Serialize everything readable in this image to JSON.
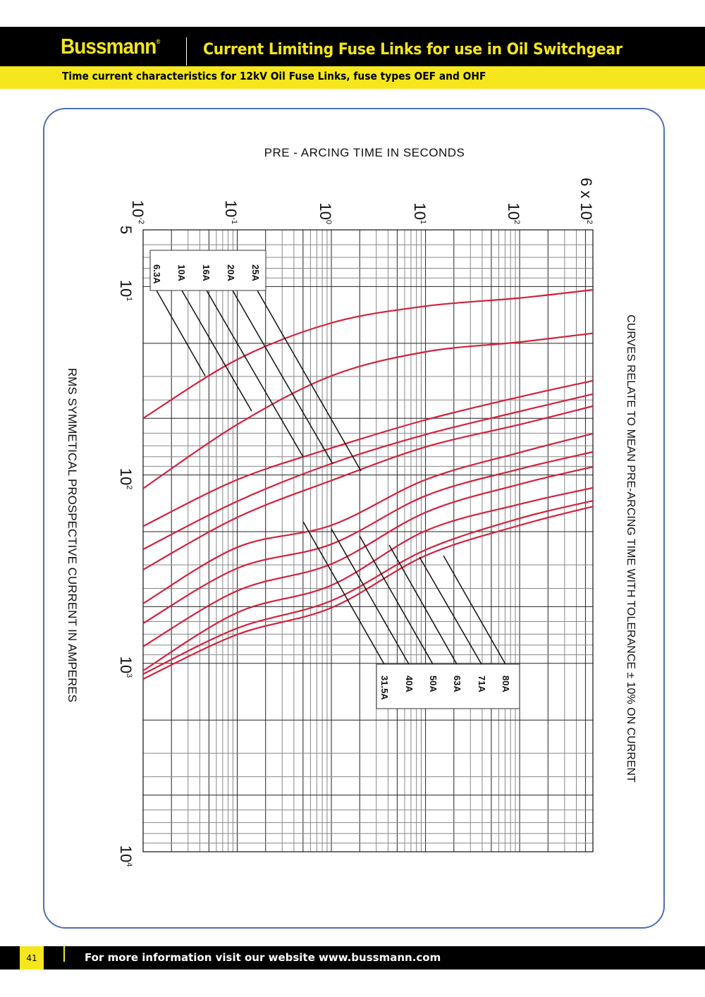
{
  "header": {
    "brand": "Bussmann",
    "registered": "®",
    "title": "Current Limiting Fuse Links for use in Oil Switchgear",
    "subtitle": "Time current characteristics for 12kV Oil Fuse Links, fuse types OEF and OHF"
  },
  "footer": {
    "page": "41",
    "text": "For more information visit our website www.bussmann.com"
  },
  "colors": {
    "brand_yellow": "#f6e61d",
    "header_black": "#000000",
    "frame_blue": "#4d6fb8",
    "curve_red": "#d4213d"
  },
  "chart_data": {
    "type": "line",
    "title": "PRE - ARCING TIME IN SECONDS",
    "xlabel": "PRE - ARCING TIME IN SECONDS",
    "ylabel": "RMS SYMMETICAL PROSPECTIVE CURRENT IN AMPERES",
    "note": "CURVES RELATE TO MEAN PRE-ARCING TIME WITH TOLERANCE ± 10% ON CURRENT",
    "x_scale": "log",
    "y_scale": "log",
    "xlim": [
      0.01,
      600
    ],
    "ylim": [
      5,
      10000
    ],
    "y_inverted": true,
    "grid": true,
    "x_ticks": [
      {
        "value": 0.01,
        "base": "10",
        "exp": "-2"
      },
      {
        "value": 0.1,
        "base": "10",
        "exp": "-1"
      },
      {
        "value": 1,
        "base": "10",
        "exp": "0"
      },
      {
        "value": 10,
        "base": "10",
        "exp": "1"
      },
      {
        "value": 100,
        "base": "10",
        "exp": "2"
      },
      {
        "value": 600,
        "base": "6 x 10",
        "exp": "2"
      }
    ],
    "y_ticks": [
      {
        "value": 5,
        "base": "5",
        "exp": ""
      },
      {
        "value": 10,
        "base": "10",
        "exp": "1"
      },
      {
        "value": 100,
        "base": "10",
        "exp": "2"
      },
      {
        "value": 1000,
        "base": "10",
        "exp": "3"
      },
      {
        "value": 10000,
        "base": "10",
        "exp": "4"
      }
    ],
    "x": [
      0.01,
      0.1,
      1,
      10,
      100,
      600
    ],
    "series": [
      {
        "name": "6.3A",
        "values": [
          50,
          24.4,
          15.6,
          12.7,
          11.5,
          10.4
        ]
      },
      {
        "name": "10A",
        "values": [
          118,
          54,
          29.8,
          22.2,
          19.7,
          17.7
        ]
      },
      {
        "name": "16A",
        "values": [
          187,
          106,
          72,
          51,
          38.5,
          31.6
        ]
      },
      {
        "name": "20A",
        "values": [
          248,
          138,
          87,
          61,
          46,
          37.2
        ]
      },
      {
        "name": "25A",
        "values": [
          318,
          168,
          107,
          71,
          54,
          43.1
        ]
      },
      {
        "name": "31.5A",
        "values": [
          481,
          242,
          185,
          106,
          76,
          60.3
        ]
      },
      {
        "name": "40A",
        "values": [
          613,
          313,
          233,
          129,
          93,
          75.5
        ]
      },
      {
        "name": "50A",
        "values": [
          814,
          412,
          297,
          158,
          112,
          90.5
        ]
      },
      {
        "name": "63A",
        "values": [
          1092,
          538,
          385,
          198,
          143,
          117
        ]
      },
      {
        "name": "71A",
        "values": [
          1140,
          651,
          465,
          250,
          170,
          137
        ]
      },
      {
        "name": "80A",
        "values": [
          1211,
          703,
          507,
          268,
          185,
          147
        ]
      }
    ]
  }
}
